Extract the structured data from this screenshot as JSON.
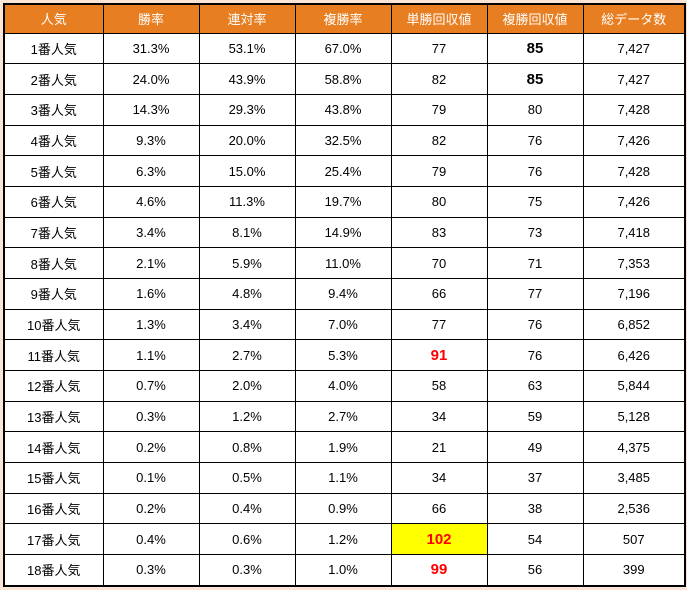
{
  "table": {
    "headers": [
      "人気",
      "勝率",
      "連対率",
      "複勝率",
      "単勝回収値",
      "複勝回収値",
      "総データ数"
    ],
    "rows": [
      {
        "cells": [
          "1番人気",
          "31.3%",
          "53.1%",
          "67.0%",
          "77",
          "85",
          "7,427"
        ],
        "cell_styles": {
          "5": "bold"
        }
      },
      {
        "cells": [
          "2番人気",
          "24.0%",
          "43.9%",
          "58.8%",
          "82",
          "85",
          "7,427"
        ],
        "cell_styles": {
          "5": "bold"
        }
      },
      {
        "cells": [
          "3番人気",
          "14.3%",
          "29.3%",
          "43.8%",
          "79",
          "80",
          "7,428"
        ]
      },
      {
        "cells": [
          "4番人気",
          "9.3%",
          "20.0%",
          "32.5%",
          "82",
          "76",
          "7,426"
        ]
      },
      {
        "cells": [
          "5番人気",
          "6.3%",
          "15.0%",
          "25.4%",
          "79",
          "76",
          "7,428"
        ]
      },
      {
        "cells": [
          "6番人気",
          "4.6%",
          "11.3%",
          "19.7%",
          "80",
          "75",
          "7,426"
        ]
      },
      {
        "cells": [
          "7番人気",
          "3.4%",
          "8.1%",
          "14.9%",
          "83",
          "73",
          "7,418"
        ]
      },
      {
        "cells": [
          "8番人気",
          "2.1%",
          "5.9%",
          "11.0%",
          "70",
          "71",
          "7,353"
        ]
      },
      {
        "cells": [
          "9番人気",
          "1.6%",
          "4.8%",
          "9.4%",
          "66",
          "77",
          "7,196"
        ]
      },
      {
        "cells": [
          "10番人気",
          "1.3%",
          "3.4%",
          "7.0%",
          "77",
          "76",
          "6,852"
        ]
      },
      {
        "cells": [
          "11番人気",
          "1.1%",
          "2.7%",
          "5.3%",
          "91",
          "76",
          "6,426"
        ],
        "cell_styles": {
          "4": "red-bold"
        }
      },
      {
        "cells": [
          "12番人気",
          "0.7%",
          "2.0%",
          "4.0%",
          "58",
          "63",
          "5,844"
        ]
      },
      {
        "cells": [
          "13番人気",
          "0.3%",
          "1.2%",
          "2.7%",
          "34",
          "59",
          "5,128"
        ]
      },
      {
        "cells": [
          "14番人気",
          "0.2%",
          "0.8%",
          "1.9%",
          "21",
          "49",
          "4,375"
        ]
      },
      {
        "cells": [
          "15番人気",
          "0.1%",
          "0.5%",
          "1.1%",
          "34",
          "37",
          "3,485"
        ]
      },
      {
        "cells": [
          "16番人気",
          "0.2%",
          "0.4%",
          "0.9%",
          "66",
          "38",
          "2,536"
        ]
      },
      {
        "cells": [
          "17番人気",
          "0.4%",
          "0.6%",
          "1.2%",
          "102",
          "54",
          "507"
        ],
        "cell_styles": {
          "4": "red-bold highlight"
        }
      },
      {
        "cells": [
          "18番人気",
          "0.3%",
          "0.3%",
          "1.0%",
          "99",
          "56",
          "399"
        ],
        "cell_styles": {
          "4": "red-bold"
        }
      }
    ]
  },
  "chart_data": {
    "type": "table",
    "title": "",
    "columns": [
      "人気",
      "勝率",
      "連対率",
      "複勝率",
      "単勝回収値",
      "複勝回収値",
      "総データ数"
    ],
    "rows": [
      [
        "1番人気",
        31.3,
        53.1,
        67.0,
        77,
        85,
        7427
      ],
      [
        "2番人気",
        24.0,
        43.9,
        58.8,
        82,
        85,
        7427
      ],
      [
        "3番人気",
        14.3,
        29.3,
        43.8,
        79,
        80,
        7428
      ],
      [
        "4番人気",
        9.3,
        20.0,
        32.5,
        82,
        76,
        7426
      ],
      [
        "5番人気",
        6.3,
        15.0,
        25.4,
        79,
        76,
        7428
      ],
      [
        "6番人気",
        4.6,
        11.3,
        19.7,
        80,
        75,
        7426
      ],
      [
        "7番人気",
        3.4,
        8.1,
        14.9,
        83,
        73,
        7418
      ],
      [
        "8番人気",
        2.1,
        5.9,
        11.0,
        70,
        71,
        7353
      ],
      [
        "9番人気",
        1.6,
        4.8,
        9.4,
        66,
        77,
        7196
      ],
      [
        "10番人気",
        1.3,
        3.4,
        7.0,
        77,
        76,
        6852
      ],
      [
        "11番人気",
        1.1,
        2.7,
        5.3,
        91,
        76,
        6426
      ],
      [
        "12番人気",
        0.7,
        2.0,
        4.0,
        58,
        63,
        5844
      ],
      [
        "13番人気",
        0.3,
        1.2,
        2.7,
        34,
        59,
        5128
      ],
      [
        "14番人気",
        0.2,
        0.8,
        1.9,
        21,
        49,
        4375
      ],
      [
        "15番人気",
        0.1,
        0.5,
        1.1,
        34,
        37,
        3485
      ],
      [
        "16番人気",
        0.2,
        0.4,
        0.9,
        66,
        38,
        2536
      ],
      [
        "17番人気",
        0.4,
        0.6,
        1.2,
        102,
        54,
        507
      ],
      [
        "18番人気",
        0.3,
        0.3,
        1.0,
        99,
        56,
        399
      ]
    ],
    "percent_columns": [
      "勝率",
      "連対率",
      "複勝率"
    ],
    "emphasis": [
      {
        "row": "1番人気",
        "column": "複勝回収値",
        "style": "bold"
      },
      {
        "row": "2番人気",
        "column": "複勝回収値",
        "style": "bold"
      },
      {
        "row": "11番人気",
        "column": "単勝回収値",
        "style": "red-bold"
      },
      {
        "row": "17番人気",
        "column": "単勝回収値",
        "style": "red-bold-yellow-highlight"
      },
      {
        "row": "18番人気",
        "column": "単勝回収値",
        "style": "red-bold"
      }
    ]
  },
  "colors": {
    "header_bg": "#E87E22",
    "header_text": "#FFFFFF",
    "body_bg": "#FFFFFF",
    "frame_bg": "#FBE5D6",
    "border": "#000000",
    "alert_text": "#FF0000",
    "highlight_bg": "#FFFF00"
  }
}
